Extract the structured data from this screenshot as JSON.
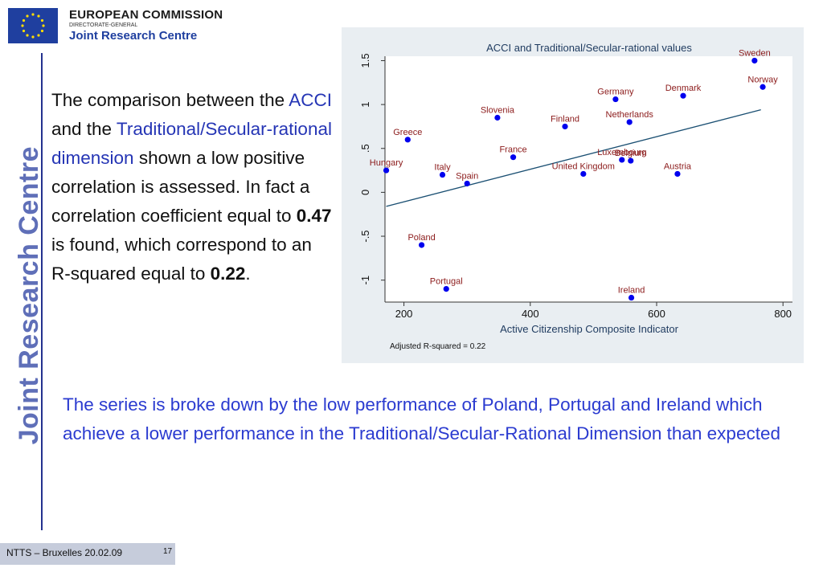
{
  "header": {
    "org_name": "EUROPEAN COMMISSION",
    "org_dg": "DIRECTORATE-GENERAL",
    "org_jrc": "Joint Research Centre"
  },
  "side_title": "Joint Research Centre",
  "left_text": {
    "p1": "The comparison between the ",
    "acci": "ACCI",
    "p2": " and the ",
    "dimension": "Traditional/Secular-rational dimension",
    "p3": " shown a low positive correlation is assessed. In fact a correlation coefficient equal to ",
    "coef": "0.47",
    "p4": " is found, which correspond to an R-squared equal to ",
    "r2": "0.22",
    "p5": "."
  },
  "bottom_text": "The series is broke down by the low performance of Poland, Portugal and Ireland which achieve a lower performance in the Traditional/Secular-Rational Dimension than expected",
  "footer": {
    "label": "NTTS – Bruxelles  20.02.09",
    "page": "17"
  },
  "colors": {
    "point": "#0000ee",
    "label": "#8b1a1a",
    "fit_line": "#1a4f72",
    "panel_bg": "#e9eef2",
    "accent_text": "#2b3bd0"
  },
  "chart_data": {
    "type": "scatter",
    "title": "ACCI and Traditional/Secular-rational values",
    "xlabel": "Active Citizenship Composite Indicator",
    "ylabel": "",
    "note": "Adjusted R-squared = 0.22",
    "xlim": [
      170,
      815
    ],
    "ylim": [
      -1.25,
      1.55
    ],
    "xticks": [
      200,
      400,
      600,
      800
    ],
    "yticks": [
      -1,
      -0.5,
      0,
      0.5,
      1,
      1.5
    ],
    "ytick_labels": [
      "-1",
      "-.5",
      "0",
      ".5",
      "1",
      "1.5"
    ],
    "grid": false,
    "fit_line": {
      "x": [
        172,
        765
      ],
      "y": [
        -0.16,
        0.94
      ]
    },
    "points": [
      {
        "label": "Sweden",
        "x": 755,
        "y": 1.5
      },
      {
        "label": "Norway",
        "x": 768,
        "y": 1.2
      },
      {
        "label": "Denmark",
        "x": 642,
        "y": 1.1
      },
      {
        "label": "Germany",
        "x": 535,
        "y": 1.06
      },
      {
        "label": "Netherlands",
        "x": 557,
        "y": 0.8
      },
      {
        "label": "Finland",
        "x": 455,
        "y": 0.75
      },
      {
        "label": "Slovenia",
        "x": 348,
        "y": 0.85
      },
      {
        "label": "Greece",
        "x": 206,
        "y": 0.6
      },
      {
        "label": "France",
        "x": 373,
        "y": 0.4
      },
      {
        "label": "Luxembourg",
        "x": 545,
        "y": 0.37
      },
      {
        "label": "Belgium",
        "x": 559,
        "y": 0.36
      },
      {
        "label": "United Kingdom",
        "x": 484,
        "y": 0.21
      },
      {
        "label": "Austria",
        "x": 633,
        "y": 0.21
      },
      {
        "label": "Hungary",
        "x": 172,
        "y": 0.25
      },
      {
        "label": "Italy",
        "x": 261,
        "y": 0.2
      },
      {
        "label": "Spain",
        "x": 300,
        "y": 0.1
      },
      {
        "label": "Poland",
        "x": 228,
        "y": -0.6
      },
      {
        "label": "Portugal",
        "x": 267,
        "y": -1.1
      },
      {
        "label": "Ireland",
        "x": 560,
        "y": -1.2
      }
    ]
  }
}
